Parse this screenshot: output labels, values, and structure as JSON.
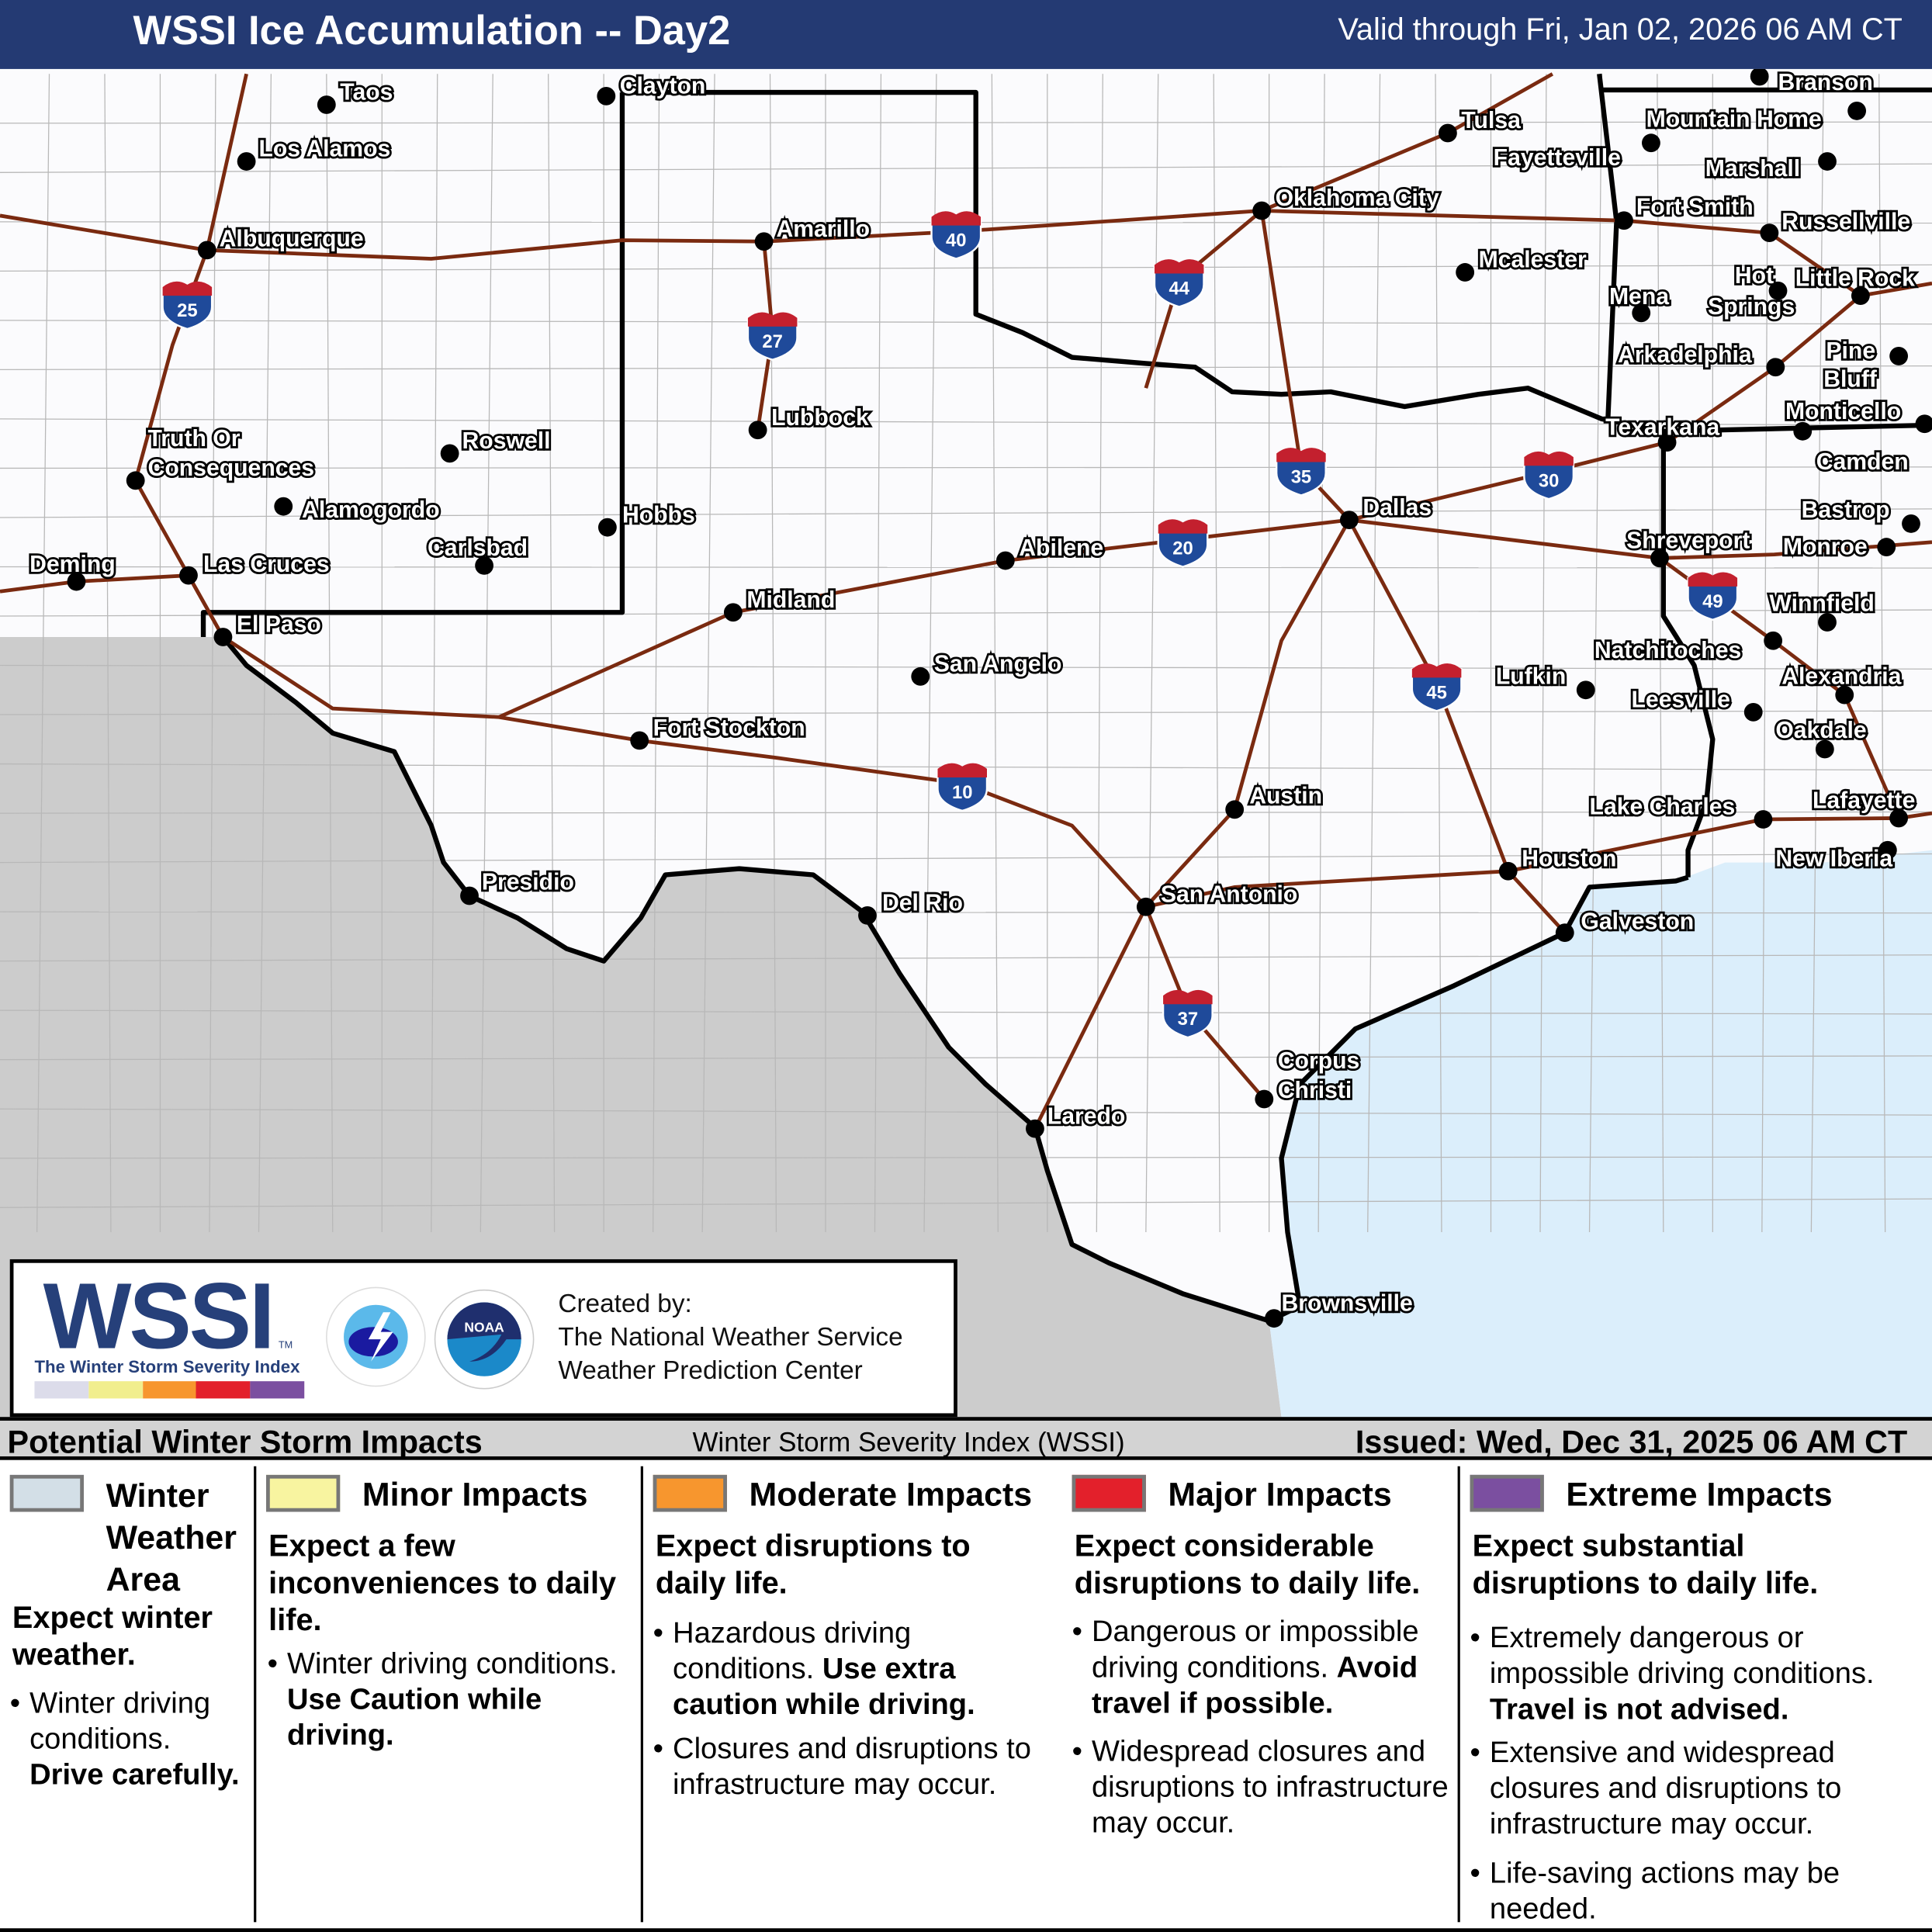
{
  "header": {
    "title": "WSSI Ice Accumulation -- Day2",
    "valid": "Valid through Fri, Jan 02, 2026 06 AM CT"
  },
  "map": {
    "colors": {
      "land": "#fbfbfd",
      "mexico": "#cccccc",
      "water": "#dbeefb",
      "interstate": "#7a2a10",
      "border": "#000000",
      "shield_blue": "#1f4a9a",
      "shield_red": "#c3202e"
    },
    "cities": [
      "Taos",
      "Clayton",
      "Los Alamos",
      "Albuquerque",
      "Truth Or",
      "Consequences",
      "Roswell",
      "Alamogordo",
      "Carlsbad",
      "Hobbs",
      "Deming",
      "Las Cruces",
      "El Paso",
      "Amarillo",
      "Lubbock",
      "Midland",
      "Abilene",
      "San Angelo",
      "Fort Stockton",
      "Presidio",
      "Del Rio",
      "San Antonio",
      "Austin",
      "Laredo",
      "Corpus",
      "Christi",
      "Brownsville",
      "Houston",
      "Galveston",
      "Dallas",
      "Lufkin",
      "Oklahoma City",
      "Tulsa",
      "Fayetteville",
      "Mcalester",
      "Fort Smith",
      "Mena",
      "Texarkana",
      "Shreveport",
      "Branson",
      "Mountain Home",
      "Marshall",
      "Russellville",
      "Hot",
      "Springs",
      "Little Rock",
      "Arkadelphia",
      "Pine",
      "Bluff",
      "Monticello",
      "Camden",
      "Bastrop",
      "Monroe",
      "Winnfield",
      "Natchitoches",
      "Alexandria",
      "Leesville",
      "Oakdale",
      "Lake Charles",
      "Lafayette",
      "New Iberia"
    ],
    "interstates": [
      "25",
      "40",
      "27",
      "44",
      "35",
      "30",
      "20",
      "49",
      "45",
      "10",
      "37"
    ]
  },
  "logo": {
    "wssi": "WSSI",
    "tm": "TM",
    "subtitle": "The Winter Storm Severity Index",
    "scale_colors": [
      "#dcdcea",
      "#f1ee8e",
      "#f7962e",
      "#e3202b",
      "#7b4fa0"
    ],
    "nws_seal": "National Weather Service",
    "noaa_seal": "NOAA"
  },
  "credits": {
    "line1": "Created by:",
    "line2": "The National Weather Service",
    "line3": "Weather Prediction Center"
  },
  "legend": {
    "title": "Potential Winter Storm Impacts",
    "index_name": "Winter Storm Severity Index (WSSI)",
    "issued": "Issued: Wed, Dec 31, 2025 06 AM CT",
    "categories": [
      {
        "name": "Winter Weather Area",
        "color": "#d3dfe7",
        "lead": "Expect winter weather.",
        "text": "Winter driving conditions.",
        "bold": "Drive carefully."
      },
      {
        "name": "Minor Impacts",
        "color": "#f8f4a0",
        "lead": "Expect a few inconveniences to daily life.",
        "b1": "Winter driving conditions.",
        "b1_bold": "Use Caution while driving."
      },
      {
        "name": "Moderate Impacts",
        "color": "#f7962e",
        "lead": "Expect disruptions to daily life.",
        "b1": "Hazardous driving conditions.",
        "b1_bold": "Use extra caution while driving.",
        "b2": "Closures and disruptions to infrastructure may occur."
      },
      {
        "name": "Major Impacts",
        "color": "#e3202b",
        "lead": "Expect considerable disruptions to daily life.",
        "b1": "Dangerous or impossible driving conditions.",
        "b1_bold": "Avoid travel if possible.",
        "b2": "Widespread closures and disruptions to infrastructure may occur."
      },
      {
        "name": "Extreme Impacts",
        "color": "#7b4fa0",
        "lead": "Expect substantial disruptions to daily life.",
        "b1": "Extremely dangerous or impossible driving conditions.",
        "b1_bold": "Travel is not advised.",
        "b2": "Extensive and widespread closures and disruptions to infrastructure may occur.",
        "b3": "Life-saving actions may be needed."
      }
    ]
  }
}
